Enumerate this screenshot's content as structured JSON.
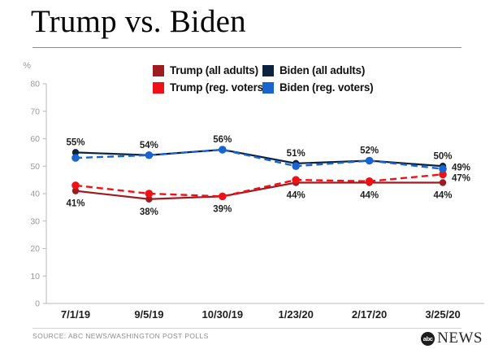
{
  "page": {
    "title": "Trump vs. Biden",
    "source": "SOURCE: ABC NEWS/WASHINGTON POST POLLS",
    "logo": {
      "abc": "abc",
      "news": "NEWS"
    }
  },
  "legend": {
    "items": [
      {
        "label": "Trump (all adults)",
        "color": "#9e1b22"
      },
      {
        "label": "Biden (all adults)",
        "color": "#0c2340"
      },
      {
        "label": "Trump (reg. voters)",
        "color": "#f01116"
      },
      {
        "label": "Biden (reg. voters)",
        "color": "#1a64d2"
      }
    ]
  },
  "chart_data": {
    "type": "line",
    "title": "Trump vs. Biden",
    "x": [
      "7/1/19",
      "9/5/19",
      "10/30/19",
      "1/23/20",
      "2/17/20",
      "3/25/20"
    ],
    "ylabel": "%",
    "ylim": [
      0,
      80
    ],
    "yticks": [
      0,
      10,
      20,
      30,
      40,
      50,
      60,
      70,
      80
    ],
    "grid": false,
    "legend_position": "top",
    "series": [
      {
        "name": "Trump (all adults)",
        "color": "#9e1b22",
        "dash": false,
        "values": [
          41,
          38,
          39,
          44,
          44,
          44
        ]
      },
      {
        "name": "Biden (all adults)",
        "color": "#0c2340",
        "dash": false,
        "values": [
          55,
          54,
          56,
          51,
          52,
          50
        ]
      },
      {
        "name": "Trump (reg. voters)",
        "color": "#f01116",
        "dash": true,
        "values": [
          43,
          40,
          39,
          45,
          44.5,
          47
        ]
      },
      {
        "name": "Biden (reg. voters)",
        "color": "#1a64d2",
        "dash": true,
        "values": [
          53,
          54,
          56,
          50,
          52,
          49
        ]
      }
    ],
    "point_labels": [
      {
        "text": "55%",
        "xi": 0,
        "v": 55,
        "pos": "above"
      },
      {
        "text": "54%",
        "xi": 1,
        "v": 54,
        "pos": "above"
      },
      {
        "text": "56%",
        "xi": 2,
        "v": 56,
        "pos": "above"
      },
      {
        "text": "51%",
        "xi": 3,
        "v": 51,
        "pos": "above"
      },
      {
        "text": "52%",
        "xi": 4,
        "v": 52,
        "pos": "above"
      },
      {
        "text": "50%",
        "xi": 5,
        "v": 50,
        "pos": "above"
      },
      {
        "text": "49%",
        "xi": 5,
        "v": 49,
        "pos": "right",
        "dy": 2
      },
      {
        "text": "47%",
        "xi": 5,
        "v": 47,
        "pos": "right",
        "dy": 8
      },
      {
        "text": "41%",
        "xi": 0,
        "v": 41,
        "pos": "below"
      },
      {
        "text": "38%",
        "xi": 1,
        "v": 38,
        "pos": "below"
      },
      {
        "text": "39%",
        "xi": 2,
        "v": 39,
        "pos": "below"
      },
      {
        "text": "44%",
        "xi": 3,
        "v": 44,
        "pos": "below"
      },
      {
        "text": "44%",
        "xi": 4,
        "v": 44,
        "pos": "below"
      },
      {
        "text": "44%",
        "xi": 5,
        "v": 44,
        "pos": "below"
      }
    ]
  }
}
